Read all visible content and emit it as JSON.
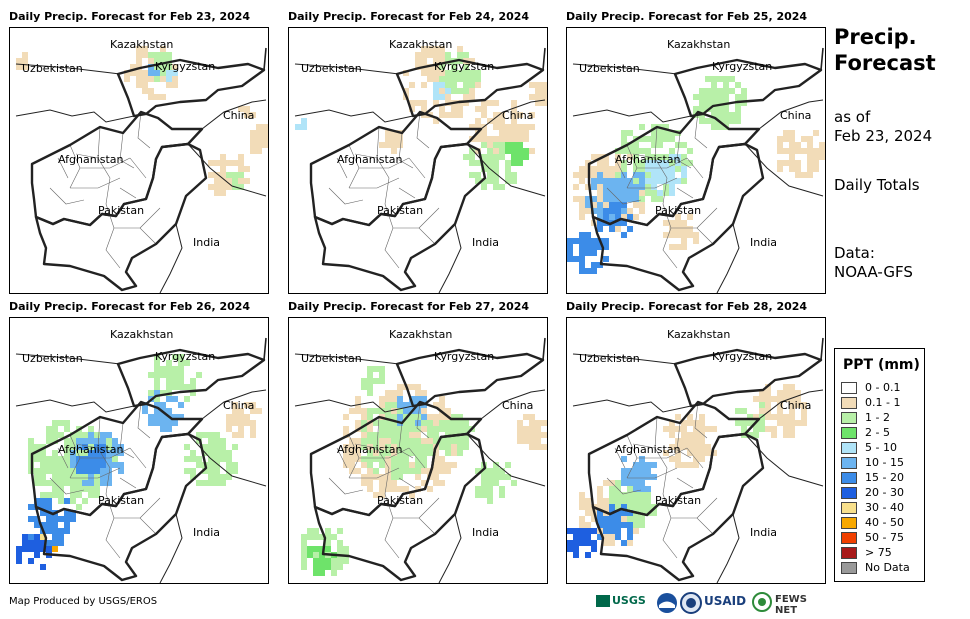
{
  "panels": [
    {
      "title": "Daily Precip. Forecast for Feb 23, 2024",
      "day": 0
    },
    {
      "title": "Daily Precip. Forecast for Feb 24, 2024",
      "day": 1
    },
    {
      "title": "Daily Precip. Forecast for Feb 25, 2024",
      "day": 2
    },
    {
      "title": "Daily Precip. Forecast for Feb 26, 2024",
      "day": 3
    },
    {
      "title": "Daily Precip. Forecast for Feb 27, 2024",
      "day": 4
    },
    {
      "title": "Daily Precip. Forecast for Feb 28, 2024",
      "day": 5
    }
  ],
  "map_labels": {
    "kazakhstan": "Kazakhstan",
    "uzbekistan": "Uzbekistan",
    "kyrgyzstan": "Kyrgyzstan",
    "china": "China",
    "afghanistan": "Afghanistan",
    "pakistan": "Pakistan",
    "india": "India"
  },
  "sidebar": {
    "heading_line1": "Precip.",
    "heading_line2": "Forecast",
    "as_of_line1": "as of",
    "as_of_line2": "Feb 23, 2024",
    "totals": "Daily Totals",
    "data_line1": "Data:",
    "data_line2": "NOAA-GFS"
  },
  "legend": {
    "title": "PPT (mm)",
    "items": [
      {
        "label": "0 - 0.1",
        "color": "#ffffff"
      },
      {
        "label": "0.1 - 1",
        "color": "#f2dcb8"
      },
      {
        "label": "1 - 2",
        "color": "#b8f0a8"
      },
      {
        "label": "2 - 5",
        "color": "#6ee36a"
      },
      {
        "label": "5 - 10",
        "color": "#b0e4f8"
      },
      {
        "label": "10 - 15",
        "color": "#6cb4f0"
      },
      {
        "label": "15 - 20",
        "color": "#3c8ce8"
      },
      {
        "label": "20 - 30",
        "color": "#1e5fe0"
      },
      {
        "label": "30 - 40",
        "color": "#f8e08c"
      },
      {
        "label": "40 - 50",
        "color": "#f8a800"
      },
      {
        "label": "50 - 75",
        "color": "#f04000"
      },
      {
        "label": "> 75",
        "color": "#a81a1a"
      },
      {
        "label": "No Data",
        "color": "#999999"
      }
    ]
  },
  "footer": {
    "credit": "Map Produced by USGS/EROS"
  },
  "logos": {
    "usgs": "USGS",
    "usaid": "USAID",
    "fews": "FEWS NET"
  }
}
